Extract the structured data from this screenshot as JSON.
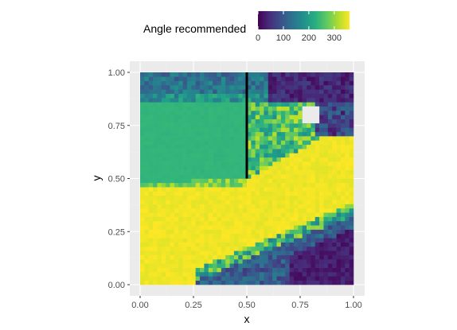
{
  "chart_data": {
    "type": "heatmap",
    "xlabel": "x",
    "ylabel": "y",
    "xlim": [
      0,
      1
    ],
    "ylim": [
      0,
      1
    ],
    "x_ticks": [
      "0.00",
      "0.25",
      "0.50",
      "0.75",
      "1.00"
    ],
    "y_ticks": [
      "0.00",
      "0.25",
      "0.50",
      "0.75",
      "1.00"
    ],
    "grid": true,
    "legend": {
      "title": "Angle recommended",
      "placement": "top",
      "scale": "viridis",
      "range": [
        0,
        360
      ],
      "ticks": [
        "0",
        "100",
        "200",
        "300"
      ]
    },
    "grid_resolution": [
      50,
      50
    ],
    "cells": "Recommended angle over the unit square: yellow (~360) across the lower-left band, green (~230) region left of x=0.5 for y 0.55–0.85, teal/blue (~100–150) along the top edge and in the lower-right band, dark purple (~0–30) in the top-right corner and bottom-right corner.",
    "obstacles": [
      {
        "type": "line",
        "x": 0.5,
        "y_from": 0.5,
        "y_to": 1.0,
        "color": "#000000"
      },
      {
        "type": "rect",
        "x_from": 0.76,
        "x_to": 0.84,
        "y_from": 0.76,
        "y_to": 0.84,
        "color": "#ebebeb"
      }
    ]
  }
}
